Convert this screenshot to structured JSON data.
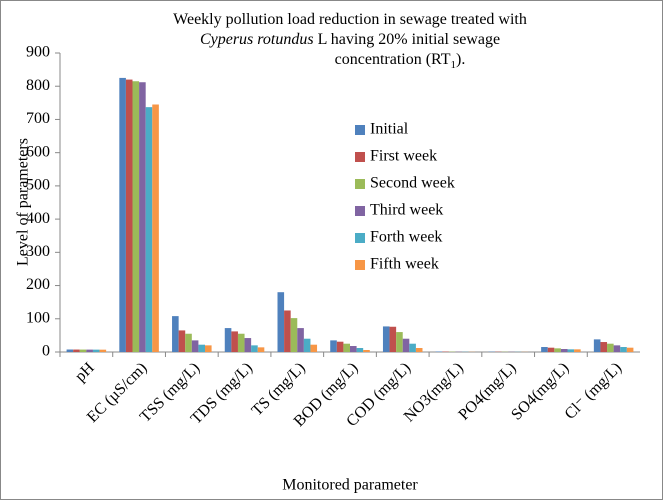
{
  "chart_data": {
    "type": "bar",
    "title_parts": [
      "Weekly pollution load reduction in sewage treated with",
      "Cyperus rotundus",
      " L having 20% initial sewage",
      "concentration (RT",
      "1",
      ")."
    ],
    "x_label": "Monitored parameter",
    "y_label": "Level of parameters",
    "categories": [
      "pH",
      "EC (µS/cm)",
      "TSS (mg/L)",
      "TDS (mg/L)",
      "TS (mg/L)",
      "BOD (mg/L)",
      "COD (mg/L)",
      "NO3(mg/L)",
      "PO4(mg/L)",
      "SO4(mg/L)",
      "Cl⁻ (mg/L)"
    ],
    "series": [
      {
        "name": "Initial",
        "color": "#4f81bd",
        "values": [
          7.5,
          825,
          108,
          72,
          180,
          35,
          77,
          1.5,
          1.0,
          15,
          38
        ]
      },
      {
        "name": "First week",
        "color": "#c0504d",
        "values": [
          7.4,
          820,
          65,
          62,
          125,
          31,
          76,
          1.2,
          0.8,
          13,
          30
        ]
      },
      {
        "name": "Second week",
        "color": "#9bbb59",
        "values": [
          7.3,
          815,
          55,
          55,
          102,
          25,
          60,
          1.0,
          0.7,
          11,
          25
        ]
      },
      {
        "name": "Third week",
        "color": "#8064a2",
        "values": [
          7.2,
          812,
          35,
          42,
          72,
          18,
          40,
          0.8,
          0.6,
          9,
          20
        ]
      },
      {
        "name": "Forth week",
        "color": "#4bacc6",
        "values": [
          7.1,
          737,
          22,
          20,
          40,
          12,
          25,
          0.6,
          0.5,
          8,
          15
        ]
      },
      {
        "name": "Fifth week",
        "color": "#f79646",
        "values": [
          7.0,
          745,
          20,
          14,
          22,
          6,
          12,
          0.5,
          0.4,
          8,
          13
        ]
      }
    ],
    "ylim": [
      0,
      900
    ],
    "yticks": [
      0,
      100,
      200,
      300,
      400,
      500,
      600,
      700,
      800,
      900
    ],
    "grid": false
  }
}
